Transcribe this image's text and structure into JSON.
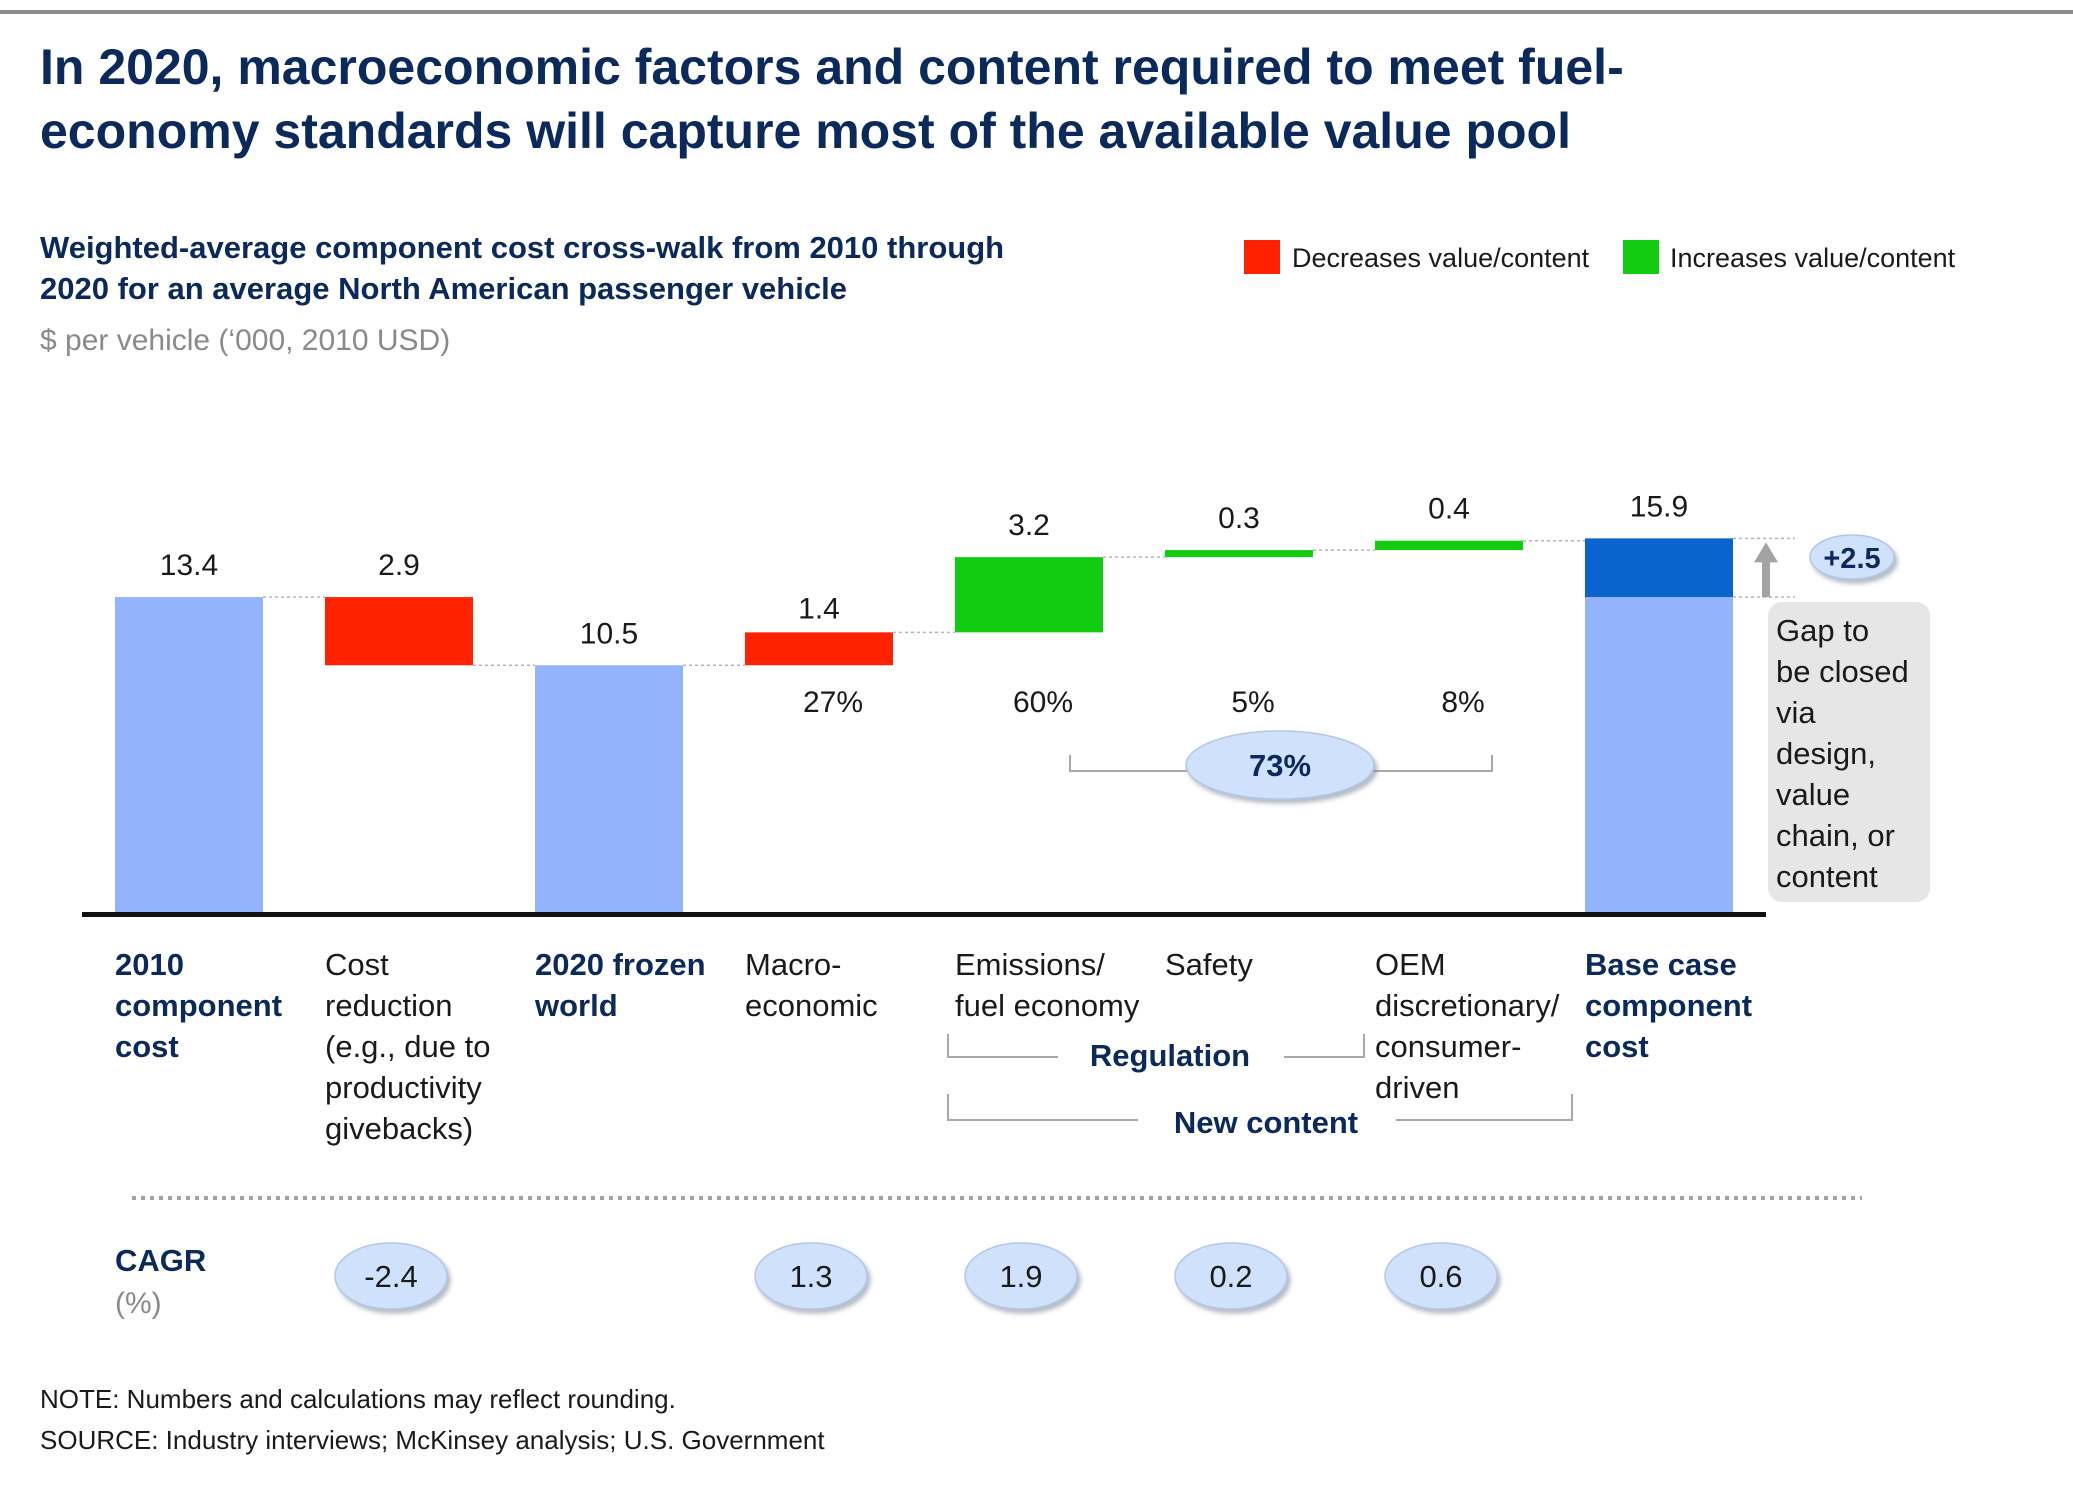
{
  "title_lines": [
    "In 2020, macroeconomic factors and content required to meet fuel-",
    "economy standards will capture most of the available value pool"
  ],
  "subtitle_lines": [
    "Weighted-average component cost cross-walk from 2010 through",
    "2020 for an average North American passenger vehicle"
  ],
  "unit_label": "$ per vehicle (‘000, 2010 USD)",
  "legend": [
    {
      "label": "Decreases value/content",
      "color": "#ff2200"
    },
    {
      "label": "Increases value/content",
      "color": "#11cc11"
    }
  ],
  "colors": {
    "total": "#94b3ff",
    "gap": "#0a64cf",
    "decrease": "#ff2200",
    "increase": "#11cc11",
    "navy": "#0b2a5b",
    "bubble": "#cfe1fb"
  },
  "chart_data": {
    "type": "bar",
    "subtype": "waterfall",
    "series": [
      {
        "name": "2010 component cost",
        "kind": "total",
        "value": 13.4,
        "label": "13.4",
        "category_lines": [
          "2010",
          "component",
          "cost"
        ],
        "category_bold": true
      },
      {
        "name": "Cost reduction",
        "kind": "decrease",
        "value": 2.9,
        "label": "2.9",
        "category_lines": [
          "Cost",
          "reduction",
          "(e.g., due to",
          "productivity",
          "givebacks)"
        ],
        "category_bold": false
      },
      {
        "name": "2020 frozen world",
        "kind": "total",
        "value": 10.5,
        "label": "10.5",
        "category_lines": [
          "2020 frozen",
          "world"
        ],
        "category_bold": true
      },
      {
        "name": "Macro-economic",
        "kind": "increase_red",
        "value": 1.4,
        "label": "1.4",
        "share": "27%",
        "category_lines": [
          "Macro-",
          "economic"
        ],
        "category_bold": false
      },
      {
        "name": "Emissions/fuel economy",
        "kind": "increase",
        "value": 3.2,
        "label": "3.2",
        "share": "60%",
        "category_lines": [
          "Emissions/",
          "fuel economy"
        ],
        "category_bold": false
      },
      {
        "name": "Safety",
        "kind": "increase",
        "value": 0.3,
        "label": "0.3",
        "share": "5%",
        "category_lines": [
          "Safety"
        ],
        "category_bold": false
      },
      {
        "name": "OEM discretionary/consumer-driven",
        "kind": "increase",
        "value": 0.4,
        "label": "0.4",
        "share": "8%",
        "category_lines": [
          "OEM",
          "discretionary/",
          "consumer-",
          "driven"
        ],
        "category_bold": false
      },
      {
        "name": "Base case component cost",
        "kind": "total_gap",
        "value": 15.9,
        "base_value": 13.4,
        "label": "15.9",
        "category_lines": [
          "Base case",
          "component",
          "cost"
        ],
        "category_bold": true
      }
    ],
    "ylim": [
      0,
      17
    ],
    "regulation_share": "73%",
    "gap_label": "+2.5",
    "gap_note_lines": [
      "Gap to",
      "be closed",
      "via",
      "design,",
      "value",
      "chain, or",
      "content"
    ],
    "bracket_labels": {
      "regulation": "Regulation",
      "new_content": "New content"
    },
    "cagr": {
      "label": "CAGR",
      "unit": "(%)",
      "values": [
        null,
        "-2.4",
        null,
        "1.3",
        "1.9",
        "0.2",
        "0.6",
        null
      ]
    }
  },
  "footnotes": [
    "NOTE: Numbers and calculations may reflect rounding.",
    "SOURCE: Industry interviews; McKinsey analysis; U.S. Government"
  ]
}
